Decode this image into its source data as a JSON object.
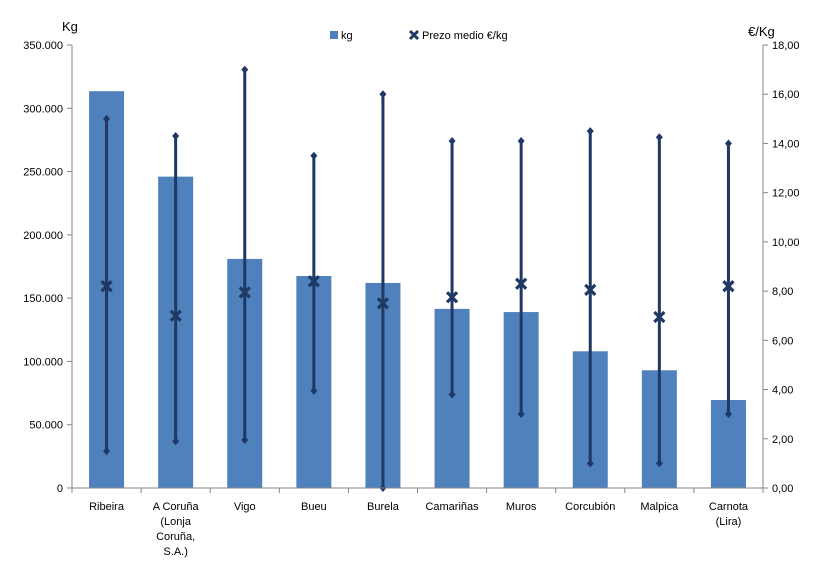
{
  "chart_data": {
    "type": "bar",
    "title": "",
    "y_left_label": "Kg",
    "y_right_label": "€/Kg",
    "categories": [
      [
        "Ribeira"
      ],
      [
        "A Coruña",
        "(Lonja",
        "Coruña,",
        "S.A.)"
      ],
      [
        "Vigo"
      ],
      [
        "Bueu"
      ],
      [
        "Burela"
      ],
      [
        "Camariñas"
      ],
      [
        "Muros"
      ],
      [
        "Corcubión"
      ],
      [
        "Malpica"
      ],
      [
        "Carnota",
        "(Lira)"
      ]
    ],
    "series": [
      {
        "name": "kg",
        "type": "bar",
        "axis": "left",
        "values": [
          313500,
          246000,
          181000,
          167500,
          162000,
          141500,
          139000,
          108000,
          93000,
          69500
        ]
      },
      {
        "name": "Prezo medio €/kg",
        "type": "stock",
        "axis": "right",
        "high": [
          15.0,
          14.3,
          17.0,
          13.5,
          16.0,
          14.1,
          14.1,
          14.5,
          14.25,
          14.0
        ],
        "low": [
          1.5,
          1.9,
          1.95,
          3.95,
          0.0,
          3.8,
          3.0,
          1.0,
          1.0,
          3.0
        ],
        "mean": [
          8.2,
          7.0,
          7.95,
          8.4,
          7.5,
          7.75,
          8.3,
          8.05,
          6.95,
          8.2
        ]
      }
    ],
    "y_left": {
      "min": 0,
      "max": 350000,
      "step": 50000,
      "tick_labels": [
        "0",
        "50.000",
        "100.000",
        "150.000",
        "200.000",
        "250.000",
        "300.000",
        "350.000"
      ]
    },
    "y_right": {
      "min": 0,
      "max": 18,
      "step": 2,
      "tick_labels": [
        "0,00",
        "2,00",
        "4,00",
        "6,00",
        "8,00",
        "10,00",
        "12,00",
        "14,00",
        "16,00",
        "18,00"
      ]
    },
    "grid": false,
    "legend_position": "top-center",
    "colors": {
      "bar": "#4F81BD",
      "price": "#1F3864"
    }
  }
}
